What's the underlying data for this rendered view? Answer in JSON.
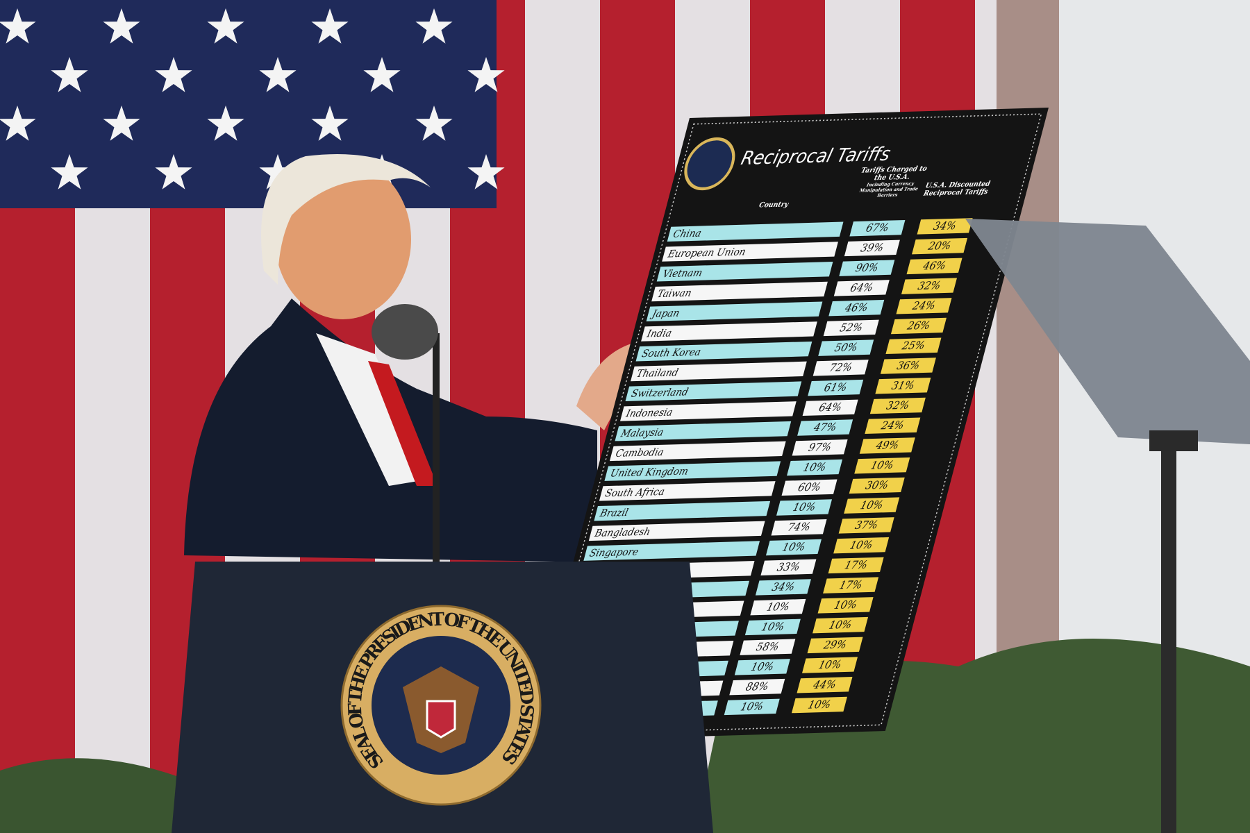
{
  "board": {
    "title": "Reciprocal Tariffs",
    "columns": {
      "country": "Country",
      "charged": "Tariffs Charged to the U.S.A.",
      "charged_note": "Including Currency Manipulation and Trade Barriers",
      "discounted": "U.S.A. Discounted Reciprocal Tariffs"
    },
    "rows": [
      {
        "country": "China",
        "charged": "67%",
        "discounted": "34%"
      },
      {
        "country": "European Union",
        "charged": "39%",
        "discounted": "20%"
      },
      {
        "country": "Vietnam",
        "charged": "90%",
        "discounted": "46%"
      },
      {
        "country": "Taiwan",
        "charged": "64%",
        "discounted": "32%"
      },
      {
        "country": "Japan",
        "charged": "46%",
        "discounted": "24%"
      },
      {
        "country": "India",
        "charged": "52%",
        "discounted": "26%"
      },
      {
        "country": "South Korea",
        "charged": "50%",
        "discounted": "25%"
      },
      {
        "country": "Thailand",
        "charged": "72%",
        "discounted": "36%"
      },
      {
        "country": "Switzerland",
        "charged": "61%",
        "discounted": "31%"
      },
      {
        "country": "Indonesia",
        "charged": "64%",
        "discounted": "32%"
      },
      {
        "country": "Malaysia",
        "charged": "47%",
        "discounted": "24%"
      },
      {
        "country": "Cambodia",
        "charged": "97%",
        "discounted": "49%"
      },
      {
        "country": "United Kingdom",
        "charged": "10%",
        "discounted": "10%"
      },
      {
        "country": "South Africa",
        "charged": "60%",
        "discounted": "30%"
      },
      {
        "country": "Brazil",
        "charged": "10%",
        "discounted": "10%"
      },
      {
        "country": "Bangladesh",
        "charged": "74%",
        "discounted": "37%"
      },
      {
        "country": "Singapore",
        "charged": "10%",
        "discounted": "10%"
      },
      {
        "country": null,
        "charged": "33%",
        "discounted": "17%"
      },
      {
        "country": null,
        "charged": "34%",
        "discounted": "17%"
      },
      {
        "country": null,
        "charged": "10%",
        "discounted": "10%"
      },
      {
        "country": null,
        "charged": "10%",
        "discounted": "10%"
      },
      {
        "country": null,
        "charged": "58%",
        "discounted": "29%"
      },
      {
        "country": null,
        "charged": "10%",
        "discounted": "10%"
      },
      {
        "country": null,
        "charged": "88%",
        "discounted": "44%"
      },
      {
        "country": null,
        "charged": "10%",
        "discounted": "10%"
      }
    ]
  },
  "podium": {
    "seal_text": "SEAL OF THE PRESIDENT OF THE UNITED STATES"
  }
}
